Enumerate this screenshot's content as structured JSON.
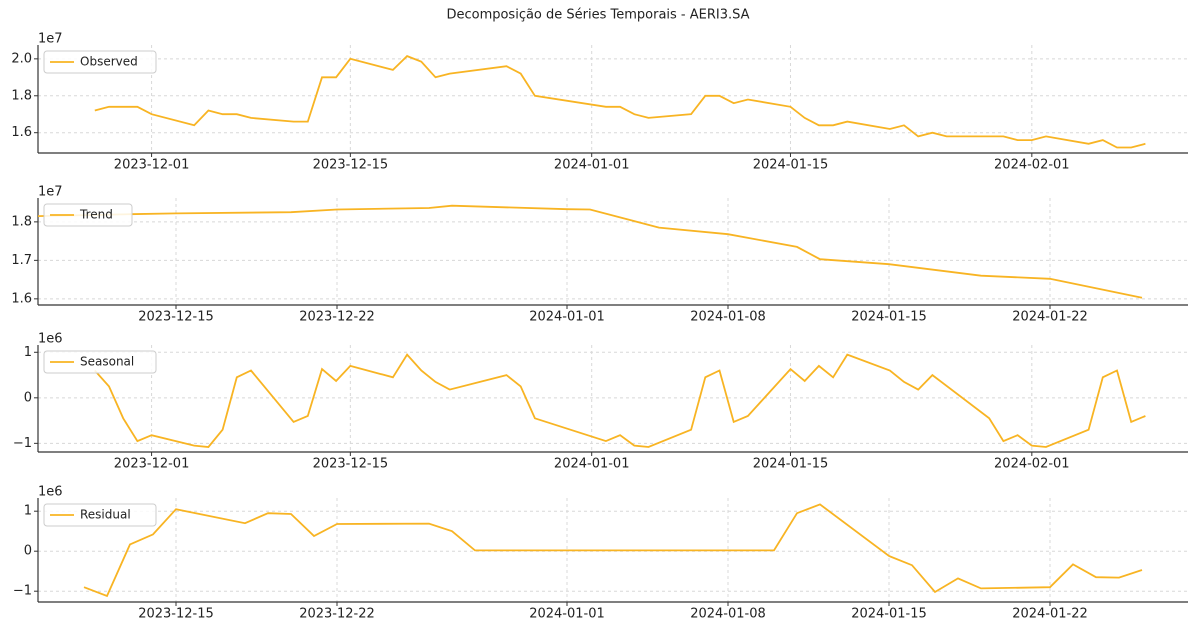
{
  "title": "Decomposição de Séries Temporais - AERI3.SA",
  "chart_data": [
    {
      "type": "line",
      "offset_label": "1e7",
      "grid": true,
      "legend": "upper left",
      "xlim": [
        "2023-11-23",
        "2024-02-12"
      ],
      "xticks": [
        "2023-12-01",
        "2023-12-15",
        "2024-01-01",
        "2024-01-15",
        "2024-02-01"
      ],
      "ylim": [
        14900000,
        20750000
      ],
      "yticks": [
        {
          "value": 16000000,
          "label": "1.6"
        },
        {
          "value": 18000000,
          "label": "1.8"
        },
        {
          "value": 20000000,
          "label": "2.0"
        }
      ],
      "x": [
        "2023-11-27",
        "2023-11-28",
        "2023-11-29",
        "2023-11-30",
        "2023-12-01",
        "2023-12-04",
        "2023-12-05",
        "2023-12-06",
        "2023-12-07",
        "2023-12-08",
        "2023-12-11",
        "2023-12-12",
        "2023-12-13",
        "2023-12-14",
        "2023-12-15",
        "2023-12-18",
        "2023-12-19",
        "2023-12-20",
        "2023-12-21",
        "2023-12-22",
        "2023-12-26",
        "2023-12-27",
        "2023-12-28",
        "2024-01-02",
        "2024-01-03",
        "2024-01-04",
        "2024-01-05",
        "2024-01-08",
        "2024-01-09",
        "2024-01-10",
        "2024-01-11",
        "2024-01-12",
        "2024-01-15",
        "2024-01-16",
        "2024-01-17",
        "2024-01-18",
        "2024-01-19",
        "2024-01-22",
        "2024-01-23",
        "2024-01-24",
        "2024-01-25",
        "2024-01-26",
        "2024-01-29",
        "2024-01-30",
        "2024-01-31",
        "2024-02-01",
        "2024-02-02",
        "2024-02-05",
        "2024-02-06",
        "2024-02-07",
        "2024-02-08",
        "2024-02-09"
      ],
      "series": [
        {
          "name": "Observed",
          "color": "#f8b423",
          "values": [
            17200000,
            17400000,
            17400000,
            17400000,
            17000000,
            16400000,
            17200000,
            17000000,
            17000000,
            16800000,
            16600000,
            16600000,
            19000000,
            19000000,
            20000000,
            19400000,
            20150000,
            19850000,
            19000000,
            19200000,
            19600000,
            19200000,
            18000000,
            17400000,
            17400000,
            17000000,
            16800000,
            17000000,
            18000000,
            18000000,
            17600000,
            17800000,
            17400000,
            16800000,
            16400000,
            16400000,
            16600000,
            16200000,
            16400000,
            15800000,
            16000000,
            15800000,
            15800000,
            15800000,
            15600000,
            15600000,
            15800000,
            15400000,
            15600000,
            15200000,
            15200000,
            15400000
          ]
        }
      ]
    },
    {
      "type": "line",
      "offset_label": "1e7",
      "grid": true,
      "legend": "upper left",
      "xlim": [
        "2023-12-09",
        "2024-01-28"
      ],
      "xticks": [
        "2023-12-15",
        "2023-12-22",
        "2024-01-01",
        "2024-01-08",
        "2024-01-15",
        "2024-01-22"
      ],
      "ylim": [
        15840000,
        18620000
      ],
      "yticks": [
        {
          "value": 16000000,
          "label": "1.6"
        },
        {
          "value": 17000000,
          "label": "1.7"
        },
        {
          "value": 18000000,
          "label": "1.8"
        }
      ],
      "x": [
        "2023-12-09",
        "2023-12-13",
        "2023-12-15",
        "2023-12-20",
        "2023-12-22",
        "2023-12-26",
        "2023-12-27",
        "2024-01-01",
        "2024-01-02",
        "2024-01-05",
        "2024-01-08",
        "2024-01-11",
        "2024-01-12",
        "2024-01-15",
        "2024-01-19",
        "2024-01-22",
        "2024-01-26"
      ],
      "series": [
        {
          "name": "Trend",
          "color": "#f8b423",
          "values": [
            18150000,
            18200000,
            18220000,
            18250000,
            18320000,
            18360000,
            18420000,
            18330000,
            18320000,
            17850000,
            17680000,
            17350000,
            17030000,
            16900000,
            16600000,
            16520000,
            16030000
          ]
        }
      ]
    },
    {
      "type": "line",
      "offset_label": "1e6",
      "grid": true,
      "legend": "upper left",
      "xlim": [
        "2023-11-23",
        "2024-02-12"
      ],
      "xticks": [
        "2023-12-01",
        "2023-12-15",
        "2024-01-01",
        "2024-01-15",
        "2024-02-01"
      ],
      "ylim": [
        -1190000,
        1160000
      ],
      "yticks": [
        {
          "value": -1000000,
          "label": "−1"
        },
        0,
        {
          "value": 1000000,
          "label": "1"
        }
      ],
      "x": [
        "2023-11-27",
        "2023-11-28",
        "2023-11-29",
        "2023-11-30",
        "2023-12-01",
        "2023-12-04",
        "2023-12-05",
        "2023-12-06",
        "2023-12-07",
        "2023-12-08",
        "2023-12-11",
        "2023-12-12",
        "2023-12-13",
        "2023-12-14",
        "2023-12-15",
        "2023-12-18",
        "2023-12-19",
        "2023-12-20",
        "2023-12-21",
        "2023-12-22",
        "2023-12-26",
        "2023-12-27",
        "2023-12-28",
        "2024-01-02",
        "2024-01-03",
        "2024-01-04",
        "2024-01-05",
        "2024-01-08",
        "2024-01-09",
        "2024-01-10",
        "2024-01-11",
        "2024-01-12",
        "2024-01-15",
        "2024-01-16",
        "2024-01-17",
        "2024-01-18",
        "2024-01-19",
        "2024-01-22",
        "2024-01-23",
        "2024-01-24",
        "2024-01-25",
        "2024-01-29",
        "2024-01-30",
        "2024-01-31",
        "2024-02-01",
        "2024-02-02",
        "2024-02-05",
        "2024-02-06",
        "2024-02-07",
        "2024-02-08",
        "2024-02-09"
      ],
      "series": [
        {
          "name": "Seasonal",
          "color": "#f8b423",
          "values": [
            600000,
            250000,
            -450000,
            -950000,
            -820000,
            -1050000,
            -1080000,
            -700000,
            450000,
            600000,
            -530000,
            -400000,
            630000,
            370000,
            700000,
            450000,
            950000,
            600000,
            350000,
            180000,
            500000,
            250000,
            -450000,
            -950000,
            -820000,
            -1050000,
            -1080000,
            -700000,
            450000,
            600000,
            -530000,
            -400000,
            630000,
            370000,
            700000,
            450000,
            950000,
            600000,
            350000,
            180000,
            500000,
            -450000,
            -950000,
            -820000,
            -1050000,
            -1080000,
            -700000,
            450000,
            600000,
            -530000,
            -400000
          ]
        }
      ]
    },
    {
      "type": "line",
      "offset_label": "1e6",
      "grid": true,
      "legend": "upper left",
      "xlim": [
        "2023-12-09",
        "2024-01-28"
      ],
      "xticks": [
        "2023-12-15",
        "2023-12-22",
        "2024-01-01",
        "2024-01-08",
        "2024-01-15",
        "2024-01-22"
      ],
      "ylim": [
        -1270000,
        1330000
      ],
      "yticks": [
        {
          "value": -1000000,
          "label": "−1"
        },
        0,
        {
          "value": 1000000,
          "label": "1"
        }
      ],
      "x": [
        "2023-12-11",
        "2023-12-12",
        "2023-12-13",
        "2023-12-14",
        "2023-12-15",
        "2023-12-18",
        "2023-12-19",
        "2023-12-20",
        "2023-12-21",
        "2023-12-22",
        "2023-12-26",
        "2023-12-27",
        "2023-12-28",
        "2024-01-10",
        "2024-01-11",
        "2024-01-12",
        "2024-01-15",
        "2024-01-16",
        "2024-01-17",
        "2024-01-18",
        "2024-01-19",
        "2024-01-22",
        "2024-01-23",
        "2024-01-24",
        "2024-01-25",
        "2024-01-26"
      ],
      "series": [
        {
          "name": "Residual",
          "color": "#f8b423",
          "values": [
            -900000,
            -1120000,
            170000,
            420000,
            1050000,
            700000,
            950000,
            930000,
            380000,
            680000,
            690000,
            500000,
            20000,
            20000,
            950000,
            1170000,
            -120000,
            -350000,
            -1020000,
            -680000,
            -930000,
            -900000,
            -330000,
            -650000,
            -660000,
            -470000
          ]
        }
      ]
    }
  ]
}
